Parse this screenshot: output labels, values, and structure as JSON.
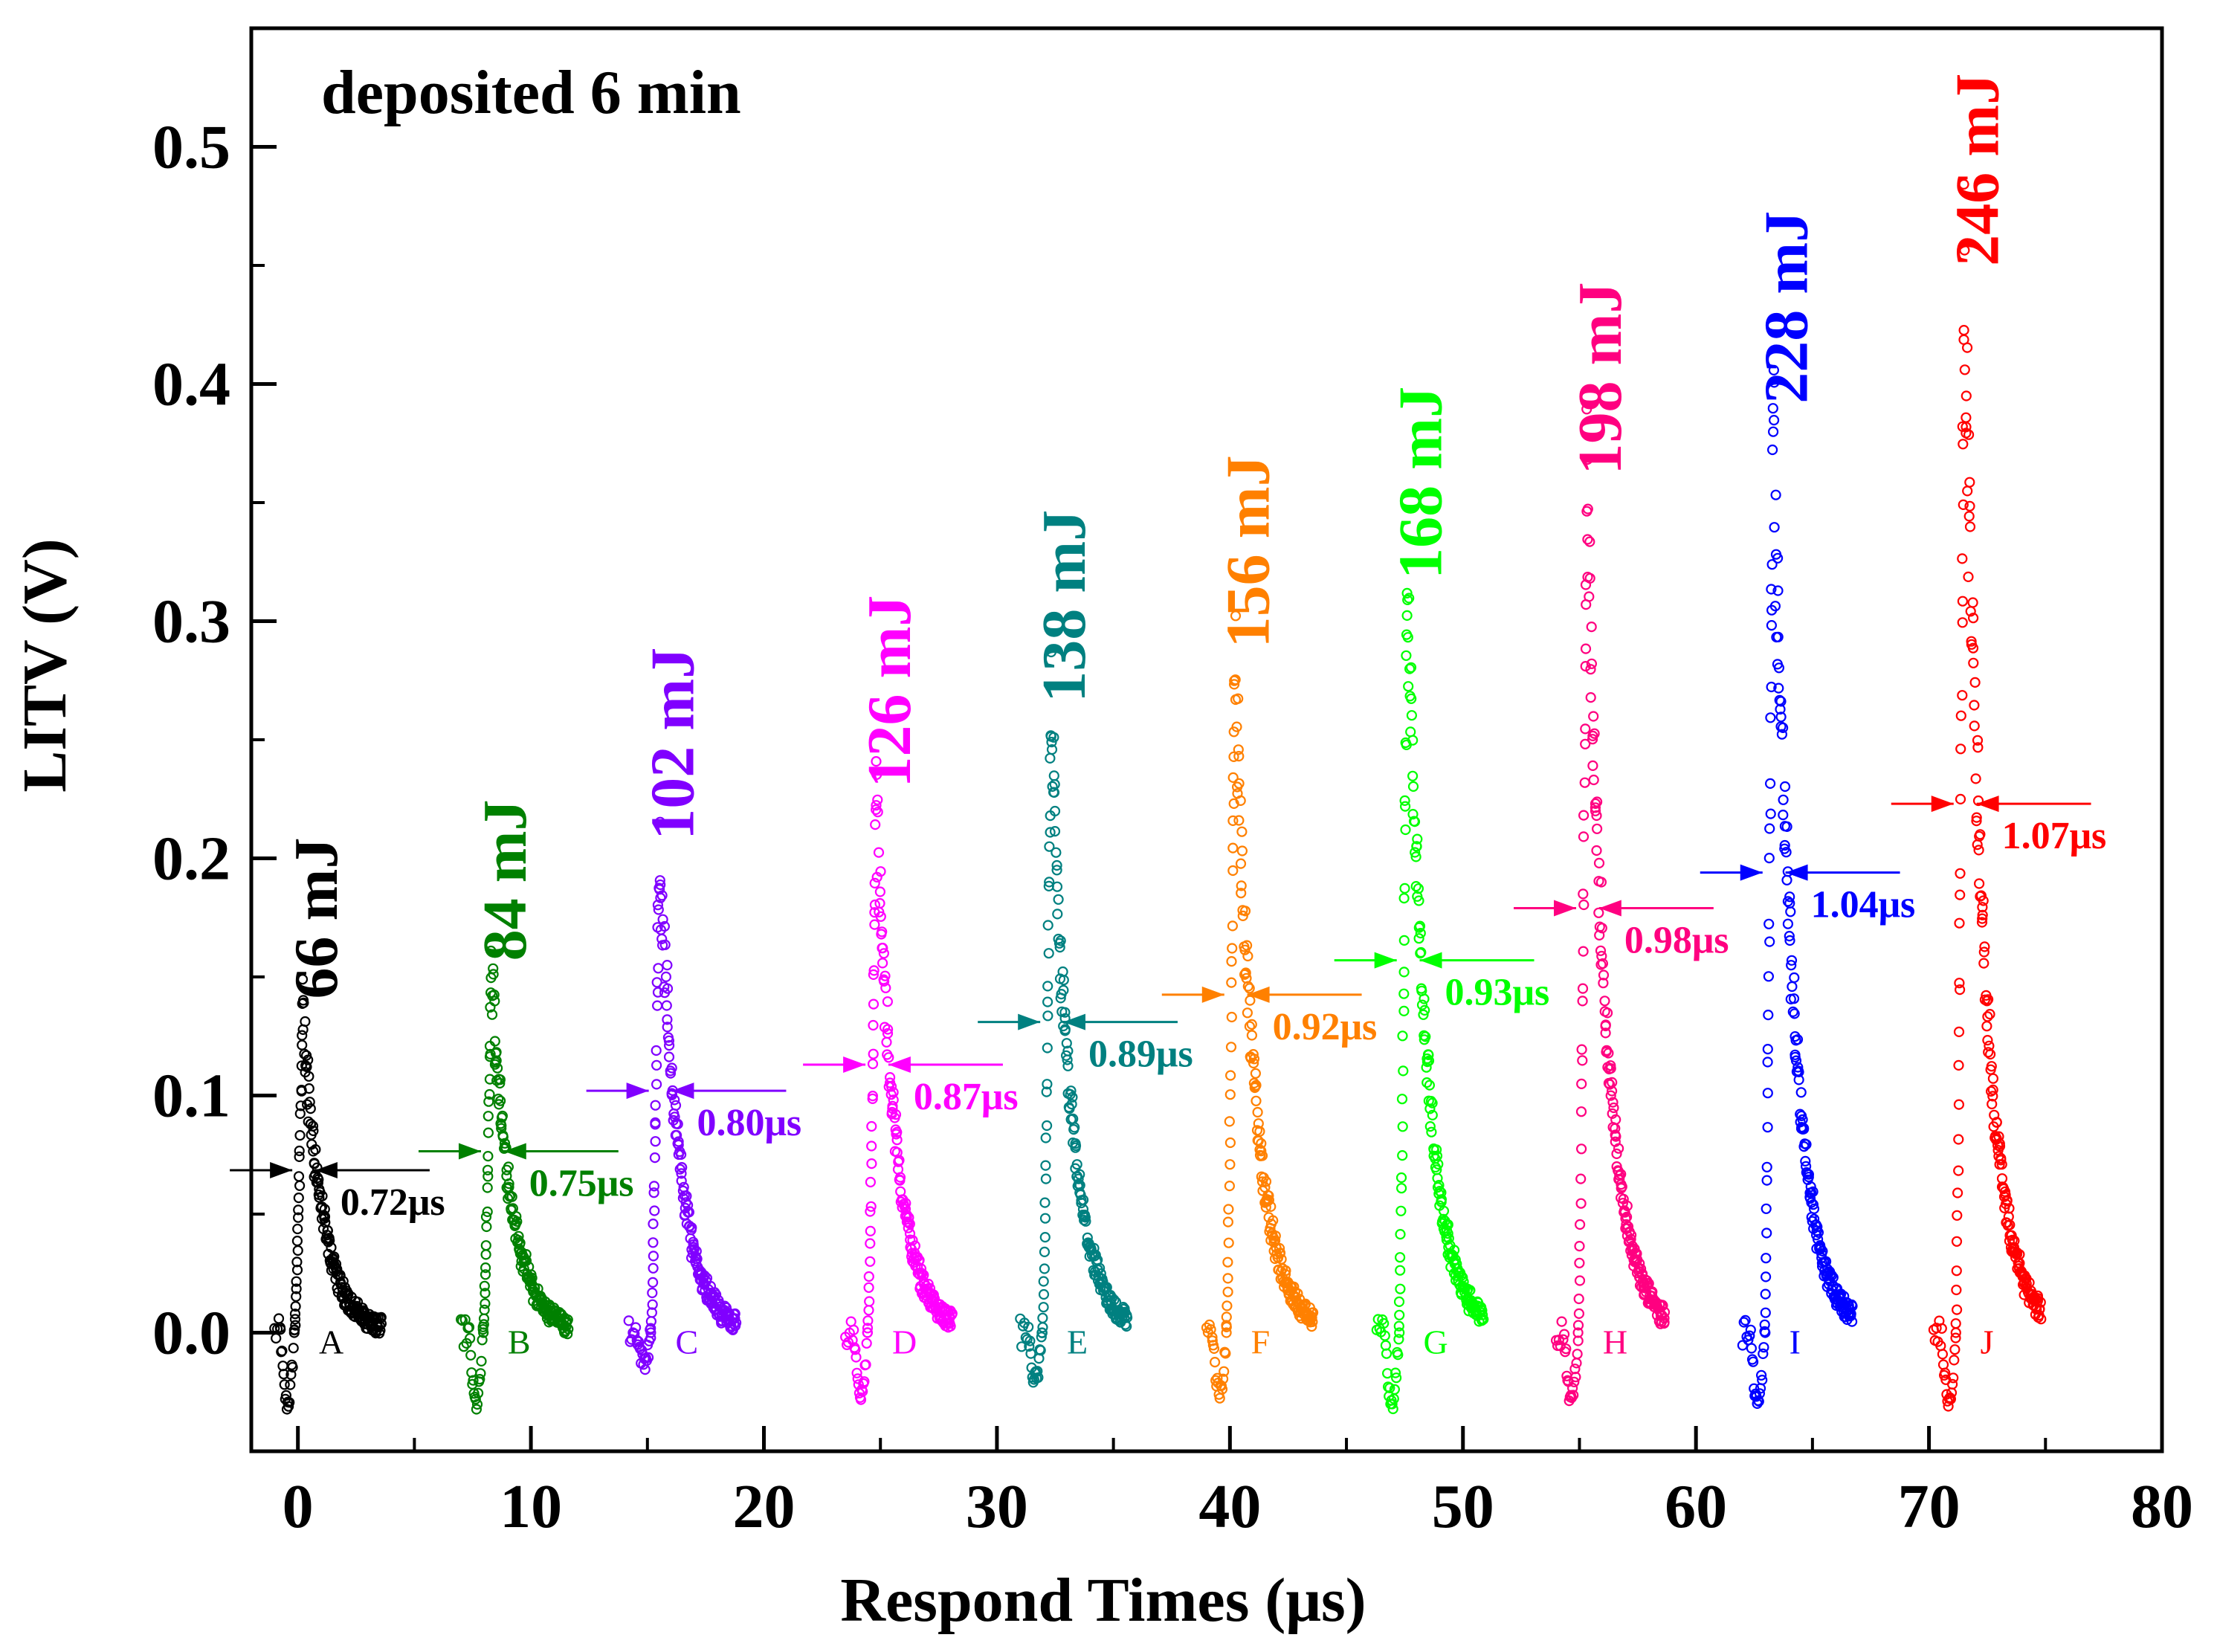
{
  "chart_data": {
    "type": "scatter",
    "title": "deposited 6 min",
    "xlabel": "Respond Times (μs)",
    "ylabel": "LITV (V)",
    "xlim": [
      -2,
      80
    ],
    "ylim": [
      -0.05,
      0.55
    ],
    "xticks": [
      0,
      10,
      20,
      30,
      40,
      50,
      60,
      70,
      80
    ],
    "yticks": [
      0.0,
      0.1,
      0.2,
      0.3,
      0.4,
      0.5
    ],
    "xtick_labels": [
      "0",
      "10",
      "20",
      "30",
      "40",
      "50",
      "60",
      "70",
      "80"
    ],
    "ytick_labels": [
      "0.0",
      "0.1",
      "0.2",
      "0.3",
      "0.4",
      "0.5"
    ],
    "series": [
      {
        "name": "A",
        "energy": "66 mJ",
        "fwhm": "0.72μs",
        "color": "#000000",
        "peak_time": 0.2,
        "peak_value": 0.137,
        "trough_value": -0.03,
        "start": -1.0,
        "end": 3.6
      },
      {
        "name": "B",
        "energy": "84 mJ",
        "fwhm": "0.75μs",
        "color": "#008000",
        "peak_time": 8.3,
        "peak_value": 0.153,
        "trough_value": -0.03,
        "start": 7.0,
        "end": 11.6
      },
      {
        "name": "C",
        "energy": "102 mJ",
        "fwhm": "0.80μs",
        "color": "#8000ff",
        "peak_time": 15.5,
        "peak_value": 0.204,
        "trough_value": -0.012,
        "start": 14.2,
        "end": 18.8
      },
      {
        "name": "D",
        "energy": "126 mJ",
        "fwhm": "0.87μs",
        "color": "#ff00ff",
        "peak_time": 24.8,
        "peak_value": 0.226,
        "trough_value": -0.025,
        "start": 23.5,
        "end": 28.1
      },
      {
        "name": "E",
        "energy": "138 mJ",
        "fwhm": "0.89μs",
        "color": "#008080",
        "peak_time": 32.3,
        "peak_value": 0.262,
        "trough_value": -0.02,
        "start": 31.0,
        "end": 35.6
      },
      {
        "name": "F",
        "energy": "156 mJ",
        "fwhm": "0.92μs",
        "color": "#ff8000",
        "peak_time": 40.2,
        "peak_value": 0.285,
        "trough_value": -0.025,
        "start": 39.0,
        "end": 43.6
      },
      {
        "name": "G",
        "energy": "168 mJ",
        "fwhm": "0.93μs",
        "color": "#00ff00",
        "peak_time": 47.6,
        "peak_value": 0.314,
        "trough_value": -0.03,
        "start": 46.3,
        "end": 50.9
      },
      {
        "name": "H",
        "energy": "198 mJ",
        "fwhm": "0.98μs",
        "color": "#ff0080",
        "peak_time": 55.3,
        "peak_value": 0.358,
        "trough_value": -0.028,
        "start": 54.0,
        "end": 58.7
      },
      {
        "name": "I",
        "energy": "228 mJ",
        "fwhm": "1.04μs",
        "color": "#0000ff",
        "peak_time": 63.3,
        "peak_value": 0.388,
        "trough_value": -0.03,
        "start": 62.0,
        "end": 66.7
      },
      {
        "name": "J",
        "energy": "246 mJ",
        "fwhm": "1.07μs",
        "color": "#ff0000",
        "peak_time": 71.5,
        "peak_value": 0.446,
        "trough_value": -0.028,
        "start": 70.2,
        "end": 74.8
      }
    ]
  }
}
